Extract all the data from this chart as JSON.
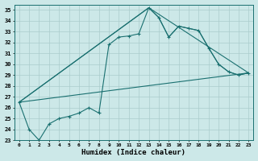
{
  "xlabel": "Humidex (Indice chaleur)",
  "bg_color": "#cce8e8",
  "grid_color": "#aacccc",
  "line_color": "#1a7070",
  "xlim": [
    -0.5,
    23.5
  ],
  "ylim": [
    23,
    35.5
  ],
  "xticks": [
    0,
    1,
    2,
    3,
    4,
    5,
    6,
    7,
    8,
    9,
    10,
    11,
    12,
    13,
    14,
    15,
    16,
    17,
    18,
    19,
    20,
    21,
    22,
    23
  ],
  "yticks": [
    23,
    24,
    25,
    26,
    27,
    28,
    29,
    30,
    31,
    32,
    33,
    34,
    35
  ],
  "line1_x": [
    0,
    1,
    2,
    3,
    4,
    5,
    6,
    7,
    8,
    9,
    10,
    11,
    12,
    13,
    14,
    15,
    16,
    17,
    18,
    19,
    20,
    21,
    22,
    23
  ],
  "line1_y": [
    26.5,
    24.0,
    23.0,
    24.5,
    25.0,
    25.2,
    25.5,
    26.0,
    25.5,
    31.8,
    32.5,
    32.6,
    32.8,
    35.2,
    34.3,
    32.5,
    33.5,
    33.3,
    33.1,
    31.5,
    30.0,
    29.3,
    29.0,
    29.2
  ],
  "line2_x": [
    0,
    13,
    14,
    15,
    16,
    17,
    18,
    19,
    20,
    21,
    22,
    23
  ],
  "line2_y": [
    26.5,
    35.2,
    34.3,
    32.5,
    33.5,
    33.3,
    33.1,
    31.5,
    30.0,
    29.3,
    29.0,
    29.2
  ],
  "line3_x": [
    0,
    23
  ],
  "line3_y": [
    26.5,
    29.2
  ],
  "line4_x": [
    0,
    13,
    23
  ],
  "line4_y": [
    26.5,
    35.2,
    29.2
  ]
}
